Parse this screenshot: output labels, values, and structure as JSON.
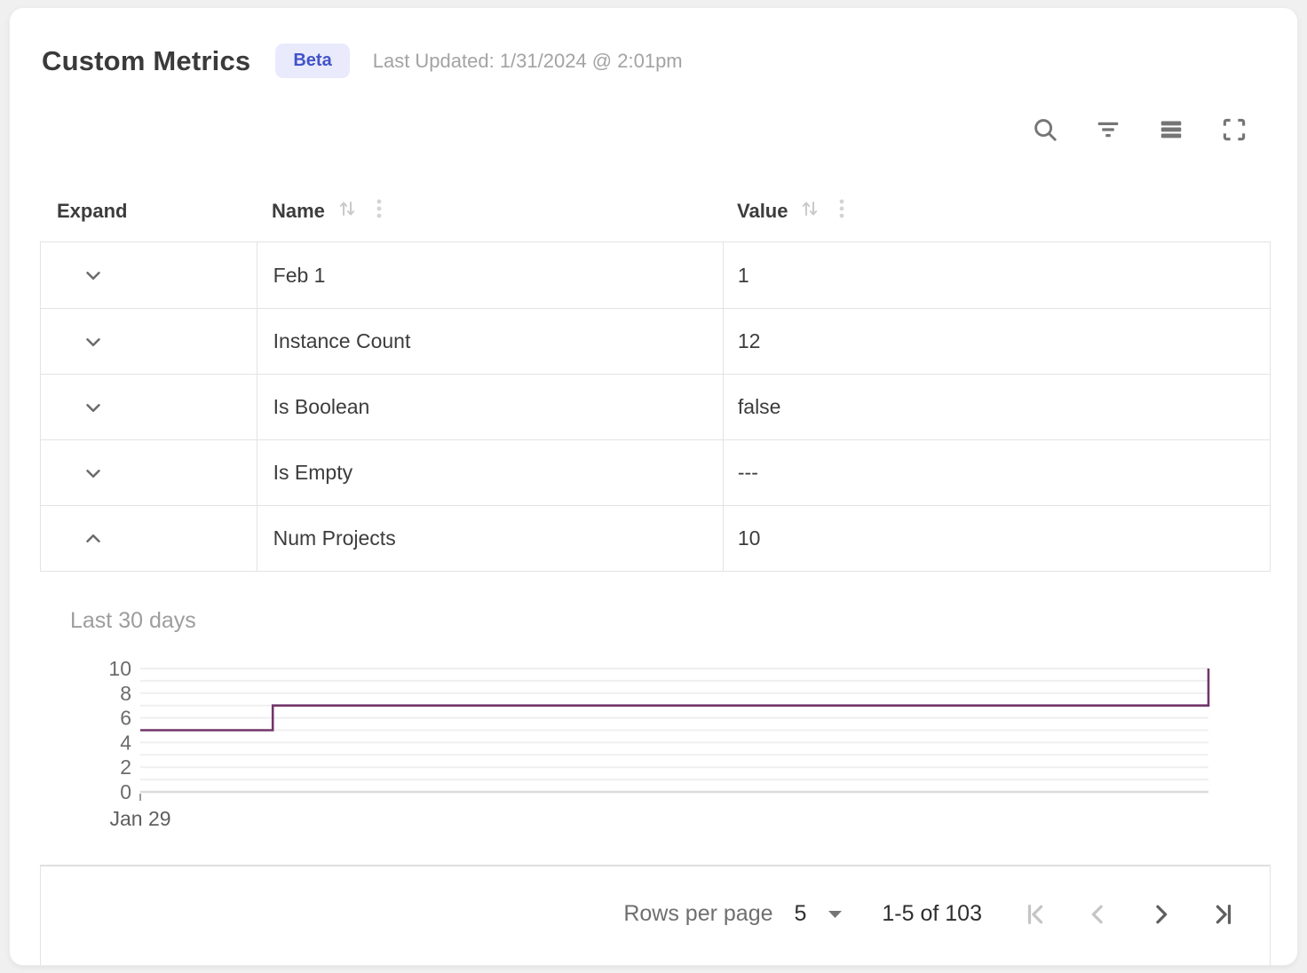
{
  "header": {
    "title": "Custom Metrics",
    "badge": "Beta",
    "last_updated": "Last Updated: 1/31/2024 @ 2:01pm"
  },
  "toolbar": {
    "icons": [
      "search-icon",
      "filter-icon",
      "density-icon",
      "fullscreen-icon"
    ]
  },
  "table": {
    "columns": [
      {
        "label": "Expand",
        "sortable": false
      },
      {
        "label": "Name",
        "sortable": true
      },
      {
        "label": "Value",
        "sortable": true
      }
    ],
    "rows": [
      {
        "name": "Feb 1",
        "value": "1",
        "expanded": false
      },
      {
        "name": "Instance Count",
        "value": "12",
        "expanded": false
      },
      {
        "name": "Is Boolean",
        "value": "false",
        "expanded": false
      },
      {
        "name": "Is Empty",
        "value": "---",
        "expanded": false
      },
      {
        "name": "Num Projects",
        "value": "10",
        "expanded": true
      }
    ]
  },
  "chart_data": {
    "type": "line",
    "step": true,
    "title": "Last 30 days",
    "points": [
      {
        "x": 0.0,
        "y": 5
      },
      {
        "x": 0.124,
        "y": 5
      },
      {
        "x": 0.124,
        "y": 7
      },
      {
        "x": 1.0,
        "y": 7
      },
      {
        "x": 1.0,
        "y": 10
      }
    ],
    "ylim": [
      0,
      10
    ],
    "ytick_labels": [
      0,
      2,
      4,
      6,
      8,
      10
    ],
    "grid_step": 1,
    "x_tick_labels": [
      {
        "label": "Jan 29",
        "x": 0
      }
    ],
    "line_color": "#72356a",
    "grid_color": "#efefef",
    "baseline_color": "#dcdcdc",
    "legend_position": "none"
  },
  "footer": {
    "rows_per_page_label": "Rows per page",
    "rows_per_page_value": "5",
    "range_label": "1-5 of 103",
    "pagination": [
      {
        "name": "first-page",
        "enabled": false
      },
      {
        "name": "previous-page",
        "enabled": false
      },
      {
        "name": "next-page",
        "enabled": true
      },
      {
        "name": "last-page",
        "enabled": true
      }
    ]
  },
  "colors": {
    "badge_bg": "#e9eafb",
    "badge_text": "#4353c9",
    "line": "#72356a",
    "border": "#e3e3e3",
    "icon_gray": "#757575",
    "sort_icon_gray": "#c9c9c9",
    "chevron_gray": "#6b6b6b",
    "pager_disabled": "#c5c5c5",
    "pager_enabled": "#5f5f5f",
    "text_dark": "#3c3c3c",
    "text_gray": "#a3a3a3"
  }
}
